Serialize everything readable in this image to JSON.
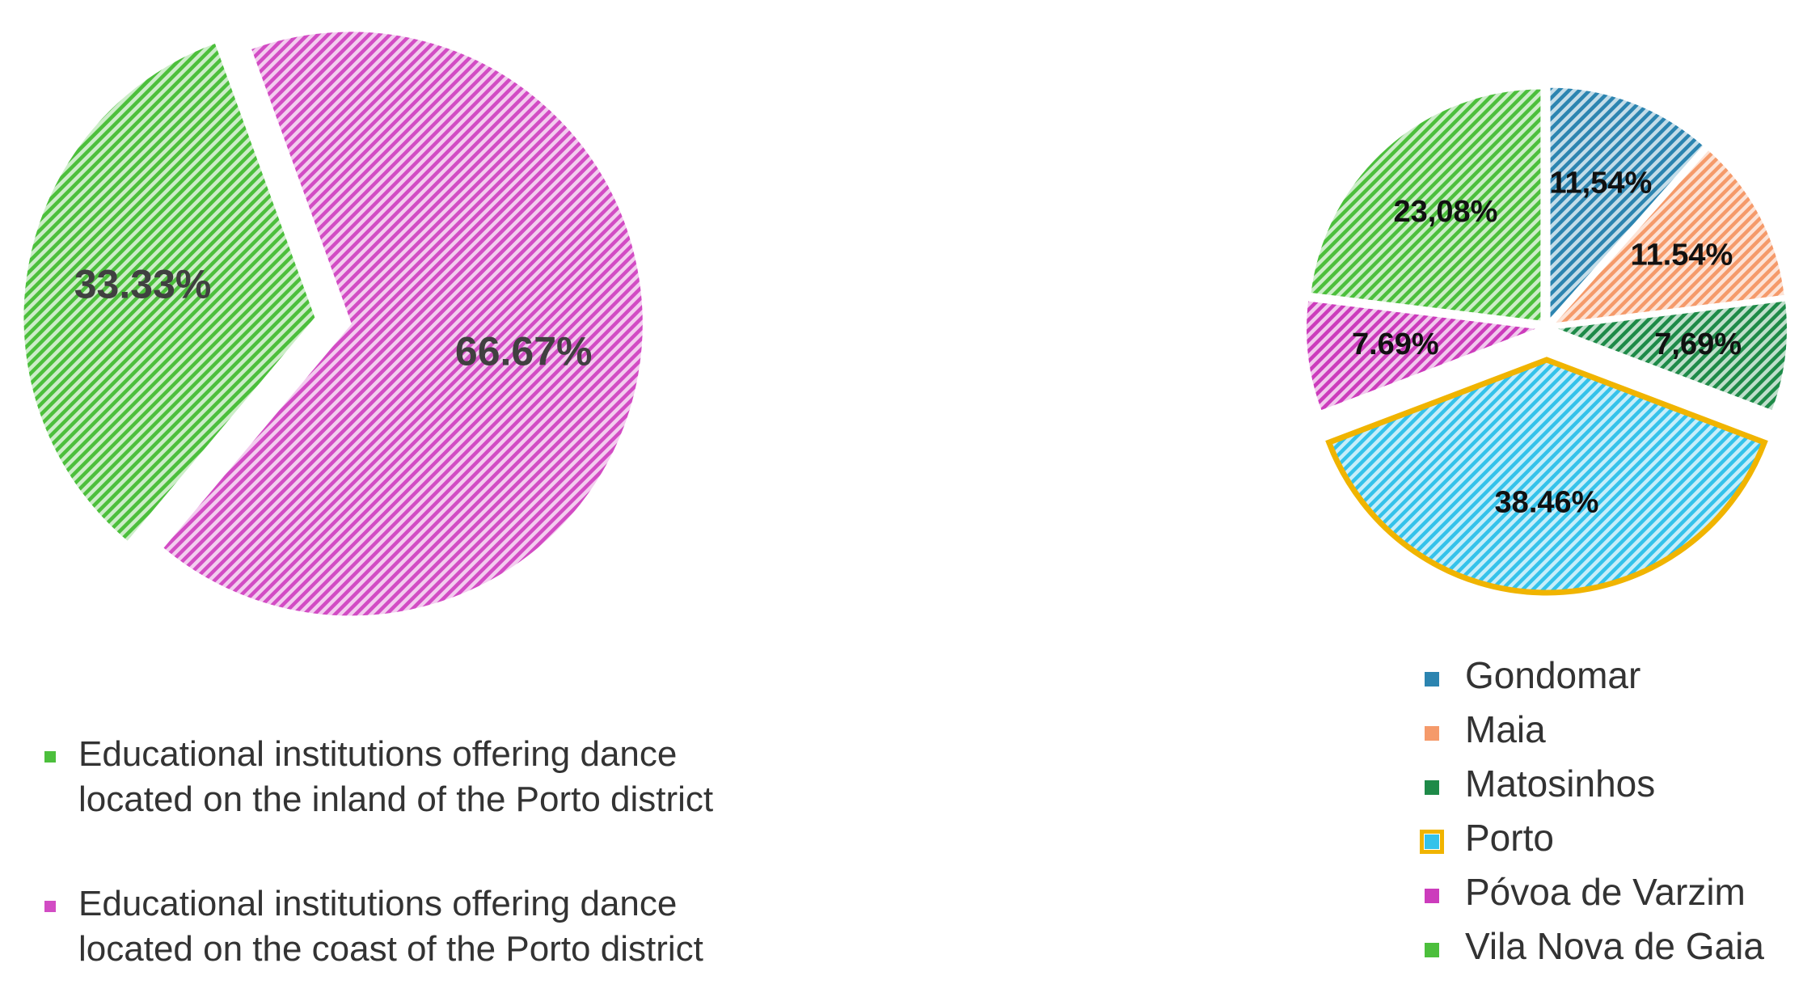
{
  "chart_data": [
    {
      "type": "pie",
      "categories": [
        "Educational institutions offering dance located on the inland of the Porto district",
        "Educational institutions offering dance located on the coast of the Porto district"
      ],
      "values": [
        33.33,
        66.67
      ],
      "value_labels": [
        "33.33%",
        "66.67%"
      ],
      "colors": [
        "#4cbf3c",
        "#d24cc4"
      ]
    },
    {
      "type": "pie",
      "categories": [
        "Gondomar",
        "Maia",
        "Matosinhos",
        "Porto",
        "Póvoa de Varzim",
        "Vila Nova de Gaia"
      ],
      "values": [
        11.54,
        11.54,
        7.69,
        38.46,
        7.69,
        23.08
      ],
      "value_labels": [
        "11,54%",
        "11.54%",
        "7,69%",
        "38.46%",
        "7.69%",
        "23,08%"
      ],
      "colors": [
        "#2c84b0",
        "#f59a6a",
        "#1e8a48",
        "#34c2ea",
        "#cc3cbc",
        "#4cbf3c"
      ],
      "edgecolors": [
        null,
        null,
        null,
        "#f0b400",
        null,
        null
      ]
    }
  ]
}
